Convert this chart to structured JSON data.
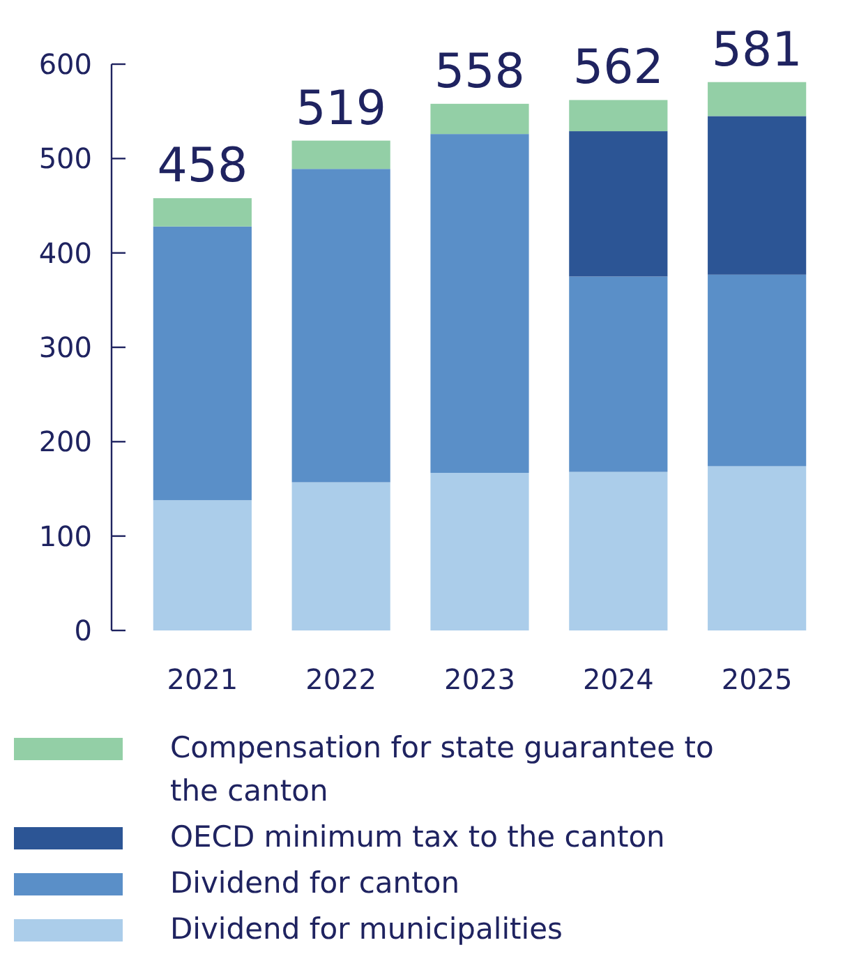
{
  "chart_data": {
    "type": "bar",
    "stacked": true,
    "categories": [
      "2021",
      "2022",
      "2023",
      "2024",
      "2025"
    ],
    "series": [
      {
        "name": "Dividend for municipalities",
        "color": "#abcdea",
        "values": [
          138,
          157,
          167,
          168,
          174
        ]
      },
      {
        "name": "Dividend for canton",
        "color": "#5a8fc8",
        "values": [
          290,
          332,
          359,
          207,
          203
        ]
      },
      {
        "name": "OECD minimum tax to the canton",
        "color": "#2c5595",
        "values": [
          null,
          null,
          null,
          154,
          168
        ]
      },
      {
        "name": "Compensation for state guarantee to the canton",
        "color": "#93cfa6",
        "values": [
          30,
          30,
          32,
          33,
          36
        ]
      }
    ],
    "totals": [
      "458",
      "519",
      "558",
      "562",
      "581"
    ],
    "ylim": [
      0,
      600
    ],
    "yticks": [
      0,
      100,
      200,
      300,
      400,
      500,
      600
    ],
    "grid": false,
    "legend": "bottom"
  }
}
